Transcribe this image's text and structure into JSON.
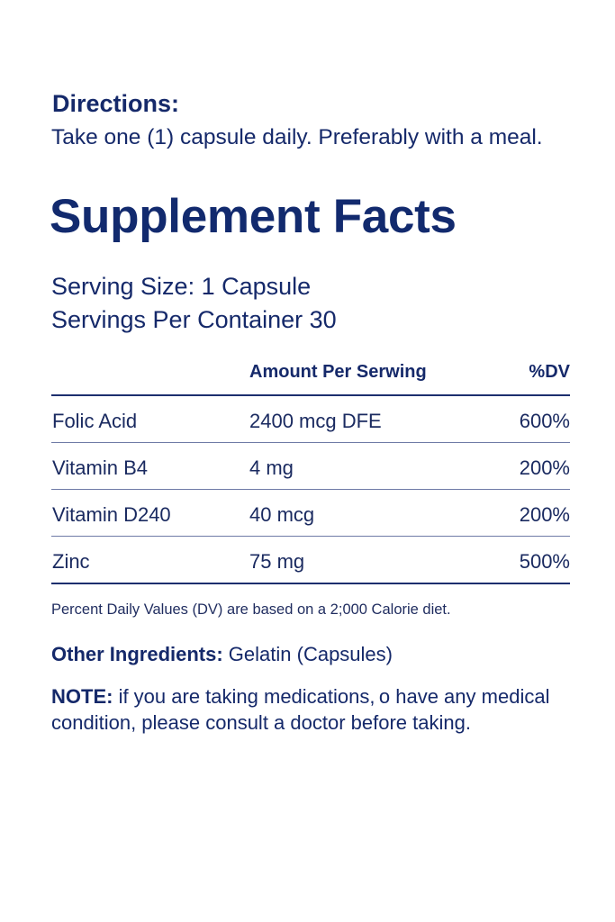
{
  "directions": {
    "heading": "Directions:",
    "text": "Take one (1) capsule daily. Preferably with a meal."
  },
  "facts": {
    "title": "Supplement Facts",
    "serving_size": "Serving Size: 1 Capsule",
    "servings_per_container": "Servings Per Container 30"
  },
  "table": {
    "headers": {
      "amount": "Amount Per Serwing",
      "dv": "%DV"
    },
    "rows": [
      {
        "name": "Folic Acid",
        "amount": "2400 mcg DFE",
        "dv": "600%"
      },
      {
        "name": "Vitamin B4",
        "amount": "4 mg",
        "dv": "200%"
      },
      {
        "name": "Vitamin D240",
        "amount": "40 mcg",
        "dv": "200%"
      },
      {
        "name": "Zinc",
        "amount": "75 mg",
        "dv": "500%"
      }
    ]
  },
  "footnote": "Percent Daily Values (DV) are based on a 2;000 Calorie diet.",
  "other_ingredients": {
    "label": "Other Ingredients:",
    "value": " Gelatin (Capsules)"
  },
  "note": {
    "label": "NOTE:",
    "text": " if you are taking medications, o have any medical condition, please consult a doctor before taking."
  },
  "colors": {
    "text": "#15296a",
    "rule": "#1d2f6e",
    "background": "#ffffff"
  }
}
